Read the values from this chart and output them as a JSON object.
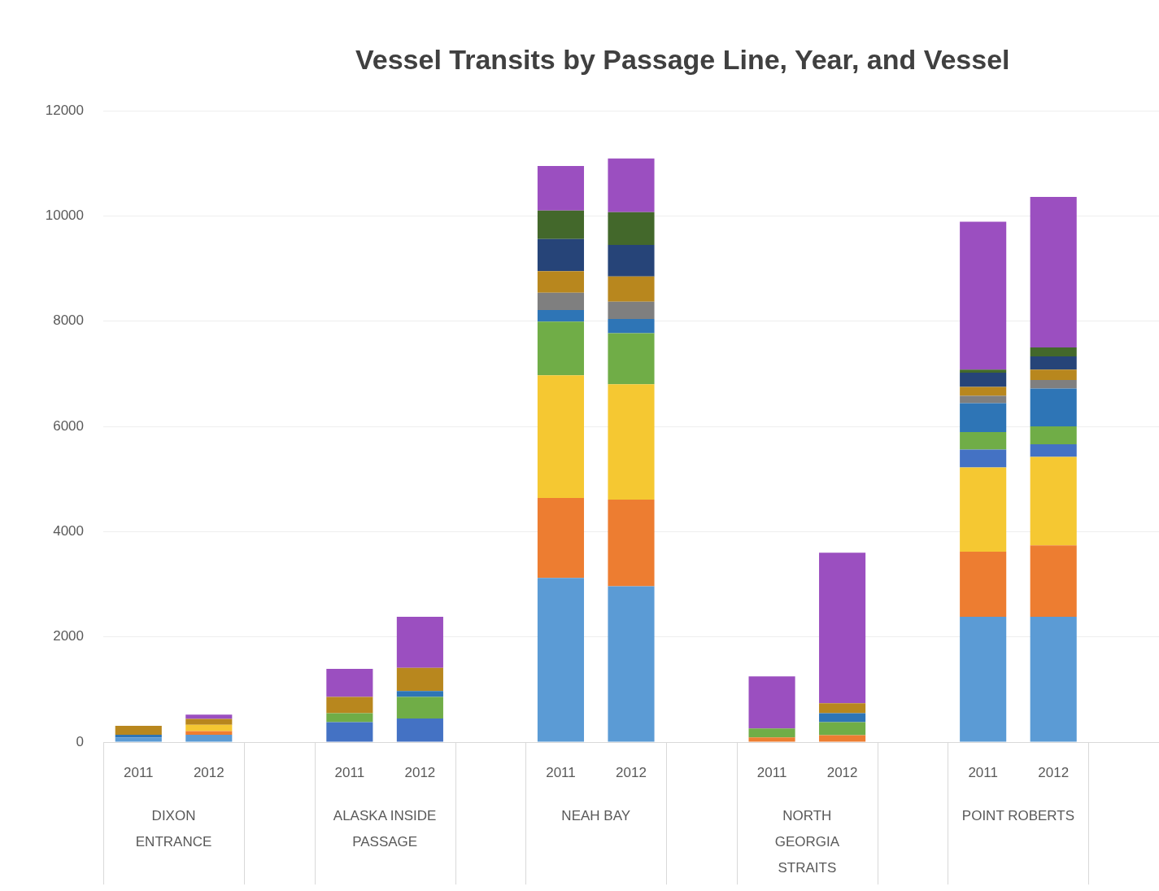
{
  "chart_data": {
    "type": "bar",
    "title": "Vessel Transits by Passage Line, Year, and Vessel",
    "categories": [
      "2011",
      "2012",
      null,
      "2011",
      "2012",
      null,
      "2011",
      "2012",
      null,
      "2011",
      "2012",
      null,
      "2011",
      "2012",
      null
    ],
    "stacked": true,
    "grid": "y",
    "legend": false,
    "ylim": [
      0,
      12000
    ],
    "yticks": [
      0,
      2000,
      4000,
      6000,
      8000,
      10000,
      12000
    ],
    "annotations": [
      "DIXON ENTRANCE",
      "ALASKA INSIDE PASSAGE",
      "NEAH BAY",
      "NORTH GEORGIA STRAITS",
      "POINT ROBERTS"
    ],
    "series": [
      {
        "color": "#5b9bd5",
        "values": [
          90,
          140,
          null,
          0,
          0,
          null,
          3120,
          2960,
          null,
          0,
          0,
          null,
          2380,
          2380,
          null
        ]
      },
      {
        "color": "#ed7d31",
        "values": [
          0,
          70,
          null,
          0,
          0,
          null,
          1520,
          1650,
          null,
          90,
          130,
          null,
          1240,
          1360,
          null
        ]
      },
      {
        "color": "#f5c832",
        "values": [
          0,
          120,
          null,
          0,
          0,
          null,
          2330,
          2190,
          null,
          0,
          0,
          null,
          1600,
          1680,
          null
        ]
      },
      {
        "color": "#4472c4",
        "values": [
          0,
          0,
          null,
          380,
          450,
          null,
          0,
          0,
          null,
          0,
          0,
          null,
          340,
          240,
          null
        ]
      },
      {
        "color": "#70ad47",
        "values": [
          0,
          0,
          null,
          170,
          410,
          null,
          1020,
          970,
          null,
          170,
          250,
          null,
          330,
          340,
          null
        ]
      },
      {
        "color": "#2e75b6",
        "values": [
          50,
          0,
          null,
          0,
          110,
          null,
          220,
          270,
          null,
          0,
          170,
          null,
          550,
          720,
          null
        ]
      },
      {
        "color": "#7f7f7f",
        "values": [
          0,
          0,
          null,
          0,
          0,
          null,
          330,
          330,
          null,
          0,
          0,
          null,
          140,
          160,
          null
        ]
      },
      {
        "color": "#b8871e",
        "values": [
          170,
          110,
          null,
          310,
          440,
          null,
          410,
          480,
          null,
          0,
          190,
          null,
          170,
          200,
          null
        ]
      },
      {
        "color": "#264478",
        "values": [
          0,
          0,
          null,
          0,
          0,
          null,
          610,
          600,
          null,
          0,
          0,
          null,
          270,
          250,
          null
        ]
      },
      {
        "color": "#43682b",
        "values": [
          0,
          0,
          null,
          0,
          0,
          null,
          540,
          620,
          null,
          0,
          0,
          null,
          60,
          170,
          null
        ]
      },
      {
        "color": "#9b4fc0",
        "values": [
          0,
          80,
          null,
          530,
          970,
          null,
          850,
          1020,
          null,
          990,
          2860,
          null,
          2810,
          2860,
          null
        ]
      }
    ]
  }
}
